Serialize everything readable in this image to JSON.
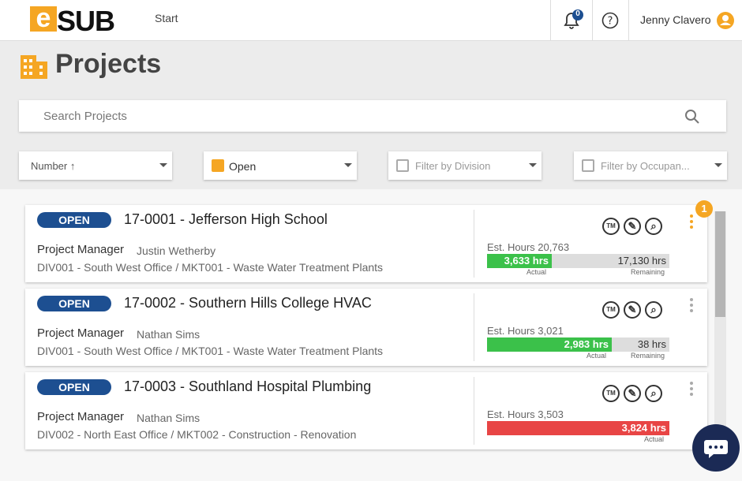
{
  "header": {
    "logo_mark": "e",
    "logo_text": "SUB",
    "nav": "Start",
    "notifications": "0",
    "user": "Jenny Clavero"
  },
  "page_title": "Projects",
  "search_placeholder": "Search Projects",
  "filters": [
    "Number ↑",
    "Open",
    "Filter by Division",
    "Filter by Occupan..."
  ],
  "projects": [
    {
      "status": "OPEN",
      "title": "17-0001 - Jefferson High School",
      "pm_label": "Project Manager",
      "pm_name": "Justin Wetherby",
      "division": "DIV001 - South West Office / MKT001 - Waste Water Treatment Plants",
      "est_hours": "Est. Hours 20,763",
      "actual": "3,633 hrs",
      "remaining": "17,130 hrs",
      "actual_label": "Actual",
      "remaining_label": "Remaining",
      "badge": "1"
    },
    {
      "status": "OPEN",
      "title": "17-0002 - Southern Hills College HVAC",
      "pm_label": "Project Manager",
      "pm_name": "Nathan Sims",
      "division": "DIV001 - South West Office / MKT001 - Waste Water Treatment Plants",
      "est_hours": "Est. Hours 3,021",
      "actual": "2,983 hrs",
      "remaining": "38 hrs",
      "actual_label": "Actual",
      "remaining_label": "Remaining"
    },
    {
      "status": "OPEN",
      "title": "17-0003 - Southland Hospital Plumbing",
      "pm_label": "Project Manager",
      "pm_name": "Nathan Sims",
      "division": "DIV002 - North East Office / MKT002 - Construction - Renovation",
      "est_hours": "Est. Hours 3,503",
      "actual": "3,824 hrs",
      "actual_label": "Actual"
    }
  ]
}
